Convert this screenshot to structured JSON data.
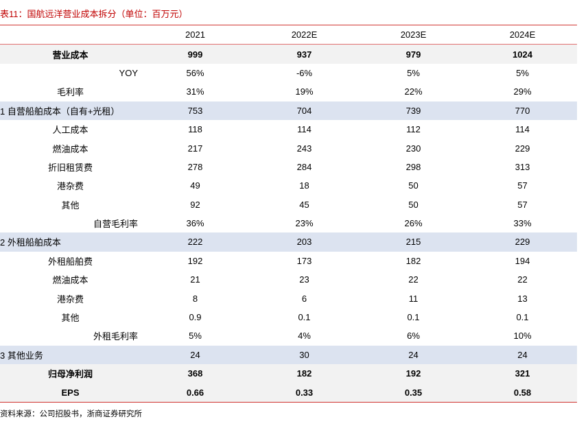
{
  "header": {
    "title": "表11：国航远洋营业成本拆分（单位：百万元）"
  },
  "table": {
    "columns": [
      "",
      "2021",
      "2022E",
      "2023E",
      "2024E"
    ],
    "rows": [
      [
        "营业成本",
        "999",
        "937",
        "979",
        "1024"
      ],
      [
        "YOY",
        "56%",
        "-6%",
        "5%",
        "5%"
      ],
      [
        "毛利率",
        "31%",
        "19%",
        "22%",
        "29%"
      ],
      [
        "1 自营船舶成本（自有+光租）",
        "753",
        "704",
        "739",
        "770"
      ],
      [
        "人工成本",
        "118",
        "114",
        "112",
        "114"
      ],
      [
        "燃油成本",
        "217",
        "243",
        "230",
        "229"
      ],
      [
        "折旧租赁费",
        "278",
        "284",
        "298",
        "313"
      ],
      [
        "港杂费",
        "49",
        "18",
        "50",
        "57"
      ],
      [
        "其他",
        "92",
        "45",
        "50",
        "57"
      ],
      [
        "自营毛利率",
        "36%",
        "23%",
        "26%",
        "33%"
      ],
      [
        "2 外租船舶成本",
        "222",
        "203",
        "215",
        "229"
      ],
      [
        "外租船舶费",
        "192",
        "173",
        "182",
        "194"
      ],
      [
        "燃油成本",
        "21",
        "23",
        "22",
        "22"
      ],
      [
        "港杂费",
        "8",
        "6",
        "11",
        "13"
      ],
      [
        "其他",
        "0.9",
        "0.1",
        "0.1",
        "0.1"
      ],
      [
        "外租毛利率",
        "5%",
        "4%",
        "6%",
        "10%"
      ],
      [
        "3 其他业务",
        "24",
        "30",
        "24",
        "24"
      ],
      [
        "归母净利润",
        "368",
        "182",
        "192",
        "321"
      ],
      [
        "EPS",
        "0.66",
        "0.33",
        "0.35",
        "0.58"
      ]
    ]
  },
  "footer": {
    "source": "资料来源：公司招股书，浙商证券研究所"
  }
}
